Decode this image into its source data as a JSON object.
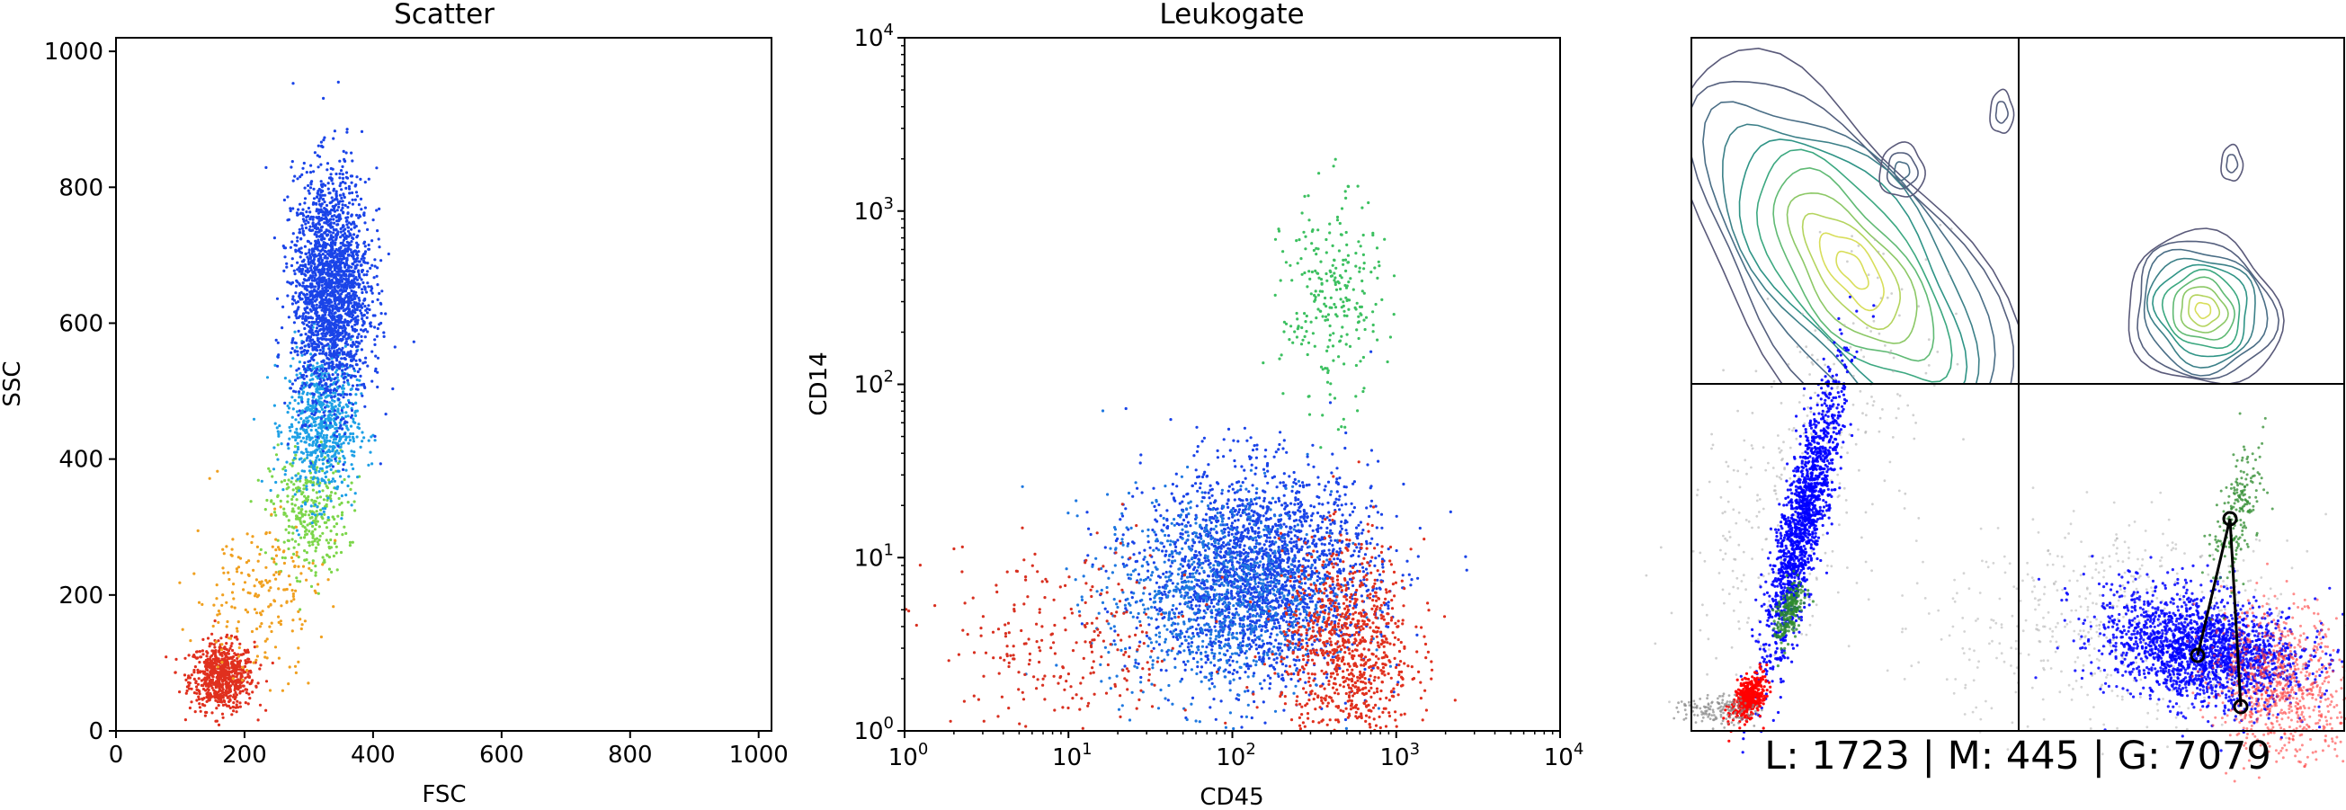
{
  "chart_data": [
    {
      "type": "scatter",
      "title": "Scatter",
      "xlabel": "FSC",
      "ylabel": "SSC",
      "xlim": [
        0,
        1020
      ],
      "ylim": [
        0,
        1020
      ],
      "xticks": [
        "0",
        "200",
        "400",
        "600",
        "800",
        "1000"
      ],
      "yticks": [
        "0",
        "200",
        "400",
        "600",
        "800",
        "1000"
      ],
      "colormap": "rainbow (red = low density, blue = high density)",
      "populations": [
        {
          "center": [
            165,
            80
          ],
          "spread": [
            25,
            25
          ],
          "color": "#e0301e"
        },
        {
          "center": [
            300,
            320
          ],
          "spread": [
            30,
            45
          ],
          "color": "#7cd64a"
        },
        {
          "center": [
            320,
            450
          ],
          "spread": [
            28,
            55
          ],
          "color": "#1ea0e6"
        },
        {
          "center": [
            335,
            650
          ],
          "spread": [
            30,
            85
          ],
          "color": "#1a44e8"
        },
        {
          "center": [
            220,
            200
          ],
          "spread": [
            50,
            60
          ],
          "color": "#f0a020"
        }
      ]
    },
    {
      "type": "scatter",
      "title": "Leukogate",
      "xlabel": "CD45",
      "ylabel": "CD14",
      "xscale": "log",
      "yscale": "log",
      "xlim": [
        1,
        10000
      ],
      "ylim": [
        1,
        10000
      ],
      "xticks": [
        "10^0",
        "10^1",
        "10^2",
        "10^3",
        "10^4"
      ],
      "yticks": [
        "10^0",
        "10^1",
        "10^2",
        "10^3",
        "10^4"
      ],
      "populations": [
        {
          "center": [
            150,
            8
          ],
          "spread_decades": [
            0.35,
            0.3
          ],
          "color": "#1a44e8"
        },
        {
          "center": [
            80,
            6
          ],
          "spread_decades": [
            0.35,
            0.3
          ],
          "color": "#1e78e0"
        },
        {
          "center": [
            500,
            3
          ],
          "spread_decades": [
            0.2,
            0.3
          ],
          "color": "#e0301e"
        },
        {
          "center": [
            10,
            3
          ],
          "spread_decades": [
            0.4,
            0.3
          ],
          "color": "#d83020"
        },
        {
          "center": [
            400,
            300
          ],
          "spread_decades": [
            0.15,
            0.3
          ],
          "color": "#3cc060"
        }
      ]
    }
  ],
  "density_panels": {
    "top_left": {
      "type": "contour",
      "peak_color": "#c8d85a"
    },
    "top_right": {
      "type": "contour",
      "peak_color": "#c8d85a"
    },
    "bottom_left": {
      "type": "scatter",
      "colors": [
        "#0000ff",
        "#ff0000",
        "#2e8b2e",
        "#a0a0a0"
      ]
    },
    "bottom_right": {
      "type": "scatter",
      "colors": [
        "#0000ff",
        "#ff4040",
        "#2e8b2e",
        "#b0b0b0"
      ]
    }
  },
  "counts_label": "L: 1723 | M: 445 | G: 7079"
}
